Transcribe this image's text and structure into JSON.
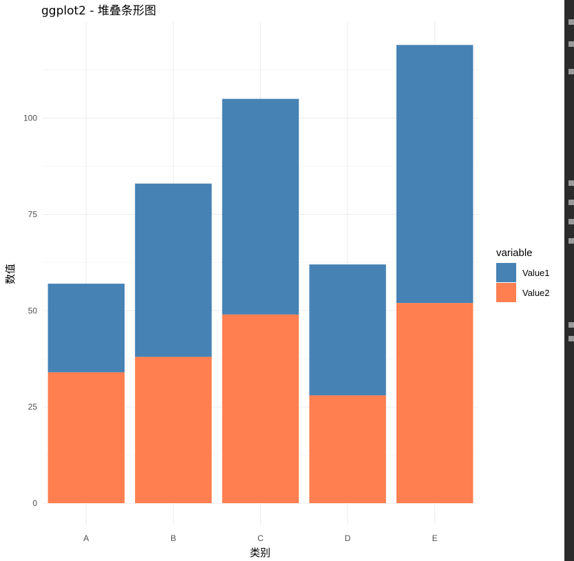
{
  "chart_data": {
    "type": "bar",
    "stacked": true,
    "title": "ggplot2 - 堆叠条形图",
    "xlabel": "类别",
    "ylabel": "数值",
    "categories": [
      "A",
      "B",
      "C",
      "D",
      "E"
    ],
    "series": [
      {
        "name": "Value1",
        "values": [
          23,
          45,
          56,
          34,
          67
        ],
        "color": "#4682B4"
      },
      {
        "name": "Value2",
        "values": [
          34,
          38,
          49,
          28,
          52
        ],
        "color": "#FF7F50"
      }
    ],
    "stack_order_bottom_to_top": [
      "Value2",
      "Value1"
    ],
    "ylim": [
      0,
      120
    ],
    "yticks": [
      0,
      25,
      50,
      75,
      100
    ],
    "ytick_labels": [
      "0",
      "25",
      "50",
      "75",
      "100"
    ],
    "grid": true,
    "legend": {
      "title": "variable",
      "position": "right",
      "entries": [
        "Value1",
        "Value2"
      ]
    }
  }
}
